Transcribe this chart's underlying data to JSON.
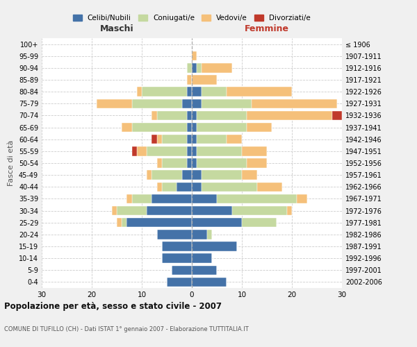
{
  "age_groups": [
    "0-4",
    "5-9",
    "10-14",
    "15-19",
    "20-24",
    "25-29",
    "30-34",
    "35-39",
    "40-44",
    "45-49",
    "50-54",
    "55-59",
    "60-64",
    "65-69",
    "70-74",
    "75-79",
    "80-84",
    "85-89",
    "90-94",
    "95-99",
    "100+"
  ],
  "birth_years": [
    "2002-2006",
    "1997-2001",
    "1992-1996",
    "1987-1991",
    "1982-1986",
    "1977-1981",
    "1972-1976",
    "1967-1971",
    "1962-1966",
    "1957-1961",
    "1952-1956",
    "1947-1951",
    "1942-1946",
    "1937-1941",
    "1932-1936",
    "1927-1931",
    "1922-1926",
    "1917-1921",
    "1912-1916",
    "1907-1911",
    "≤ 1906"
  ],
  "male_celibi": [
    5,
    4,
    6,
    6,
    7,
    13,
    9,
    8,
    3,
    2,
    1,
    1,
    1,
    1,
    1,
    2,
    1,
    0,
    0,
    0,
    0
  ],
  "male_coniugati": [
    0,
    0,
    0,
    0,
    0,
    1,
    6,
    4,
    3,
    6,
    5,
    8,
    5,
    11,
    6,
    10,
    9,
    0,
    1,
    0,
    0
  ],
  "male_vedovi": [
    0,
    0,
    0,
    0,
    0,
    1,
    1,
    1,
    1,
    1,
    1,
    2,
    1,
    2,
    1,
    7,
    1,
    1,
    0,
    0,
    0
  ],
  "male_divorziati": [
    0,
    0,
    0,
    0,
    0,
    0,
    0,
    0,
    0,
    0,
    0,
    1,
    1,
    0,
    0,
    0,
    0,
    0,
    0,
    0,
    0
  ],
  "female_celibi": [
    7,
    5,
    4,
    9,
    3,
    10,
    8,
    5,
    2,
    2,
    1,
    1,
    1,
    1,
    1,
    2,
    2,
    0,
    1,
    0,
    0
  ],
  "female_coniugati": [
    0,
    0,
    0,
    0,
    1,
    7,
    11,
    16,
    11,
    8,
    10,
    9,
    6,
    10,
    10,
    10,
    5,
    0,
    1,
    0,
    0
  ],
  "female_vedovi": [
    0,
    0,
    0,
    0,
    0,
    0,
    1,
    2,
    5,
    3,
    4,
    5,
    3,
    5,
    17,
    17,
    13,
    5,
    6,
    1,
    0
  ],
  "female_divorziati": [
    0,
    0,
    0,
    0,
    0,
    0,
    0,
    0,
    0,
    0,
    0,
    0,
    0,
    0,
    2,
    0,
    0,
    0,
    0,
    0,
    0
  ],
  "color_celibi": "#4472a8",
  "color_coniugati": "#c5d9a0",
  "color_vedovi": "#f5c07a",
  "color_divorziati": "#c0392b",
  "title": "Popolazione per età, sesso e stato civile - 2007",
  "subtitle": "COMUNE DI TUFILLO (CH) - Dati ISTAT 1° gennaio 2007 - Elaborazione TUTTITALIA.IT",
  "xlabel_left": "Maschi",
  "xlabel_right": "Femmine",
  "ylabel_left": "Fasce di età",
  "xlim": 30,
  "bg_color": "#f0f0f0",
  "plot_bg_color": "#ffffff",
  "legend_labels": [
    "Celibi/Nubili",
    "Coniugati/e",
    "Vedovi/e",
    "Divorziati/e"
  ]
}
